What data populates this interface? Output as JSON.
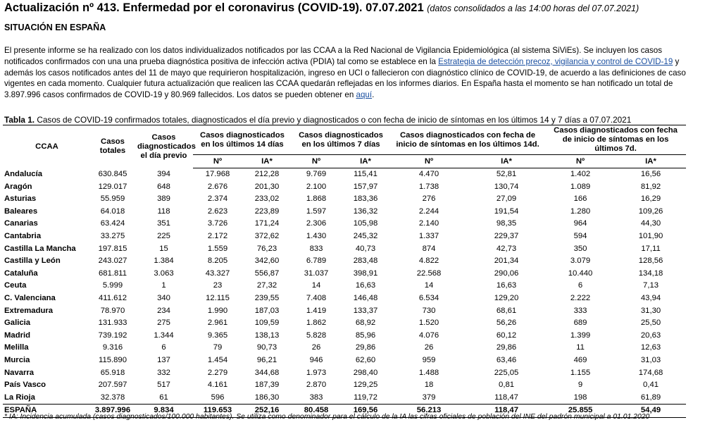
{
  "header": {
    "title": "Actualización nº 413. Enfermedad por el coronavirus (COVID-19). 07.07.2021",
    "subtitle": "(datos consolidados a las 14:00 horas del 07.07.2021)"
  },
  "section_title": "SITUACIÓN EN ESPAÑA",
  "paragraph": {
    "text_1": "El presente informe se ha realizado con los datos individualizados notificados por las CCAA a la Red Nacional de Vigilancia Epidemiológica (al sistema SiViEs). Se incluyen los casos notificados confirmados con una una prueba diagnóstica positiva de infección activa (PDIA) tal como se establece en la ",
    "link_1": "Estrategia de detección precoz, vigilancia y control de COVID-19",
    "text_2": " y además los casos notificados antes del 11 de mayo que requirieron hospitalización, ingreso en UCI o fallecieron con diagnóstico clínico de COVID-19, de acuerdo a las definiciones de caso vigentes en cada momento. Cualquier futura actualización que realicen las CCAA quedarán reflejadas en los informes diarios. En España hasta el momento se han notificado un total de 3.897.996 casos confirmados de COVID-19 y 80.969 fallecidos. Los datos se pueden obtener en ",
    "link_2": "aquí",
    "text_3": "."
  },
  "table": {
    "caption_label": "Tabla 1.",
    "caption": " Casos de COVID-19 confirmados totales, diagnosticados el día previo y diagnosticados o con fecha de inicio de síntomas en los últimos 14 y 7 días a 07.07.2021",
    "columns": [
      "CCAA",
      "Casos totales",
      "Casos diagnosticados el día previo"
    ],
    "groups": [
      "Casos diagnosticados en los últimos 14 días",
      "Casos diagnosticados en los últimos 7 días",
      "Casos diagnosticados con fecha de inicio de síntomas en los últimos 14d.",
      "Casos diagnosticados con fecha de inicio de síntomas en los últimos 7d."
    ],
    "subheaders": [
      "Nº",
      "IA*",
      "Nº",
      "IA*",
      "Nº",
      "IA*",
      "Nº",
      "IA*"
    ],
    "rows": [
      [
        "Andalucía",
        "630.845",
        "394",
        "17.968",
        "212,28",
        "9.769",
        "115,41",
        "4.470",
        "52,81",
        "1.402",
        "16,56"
      ],
      [
        "Aragón",
        "129.017",
        "648",
        "2.676",
        "201,30",
        "2.100",
        "157,97",
        "1.738",
        "130,74",
        "1.089",
        "81,92"
      ],
      [
        "Asturias",
        "55.959",
        "389",
        "2.374",
        "233,02",
        "1.868",
        "183,36",
        "276",
        "27,09",
        "166",
        "16,29"
      ],
      [
        "Baleares",
        "64.018",
        "118",
        "2.623",
        "223,89",
        "1.597",
        "136,32",
        "2.244",
        "191,54",
        "1.280",
        "109,26"
      ],
      [
        "Canarias",
        "63.424",
        "351",
        "3.726",
        "171,24",
        "2.306",
        "105,98",
        "2.140",
        "98,35",
        "964",
        "44,30"
      ],
      [
        "Cantabria",
        "33.275",
        "225",
        "2.172",
        "372,62",
        "1.430",
        "245,32",
        "1.337",
        "229,37",
        "594",
        "101,90"
      ],
      [
        "Castilla La Mancha",
        "197.815",
        "15",
        "1.559",
        "76,23",
        "833",
        "40,73",
        "874",
        "42,73",
        "350",
        "17,11"
      ],
      [
        "Castilla y León",
        "243.027",
        "1.384",
        "8.205",
        "342,60",
        "6.789",
        "283,48",
        "4.822",
        "201,34",
        "3.079",
        "128,56"
      ],
      [
        "Cataluña",
        "681.811",
        "3.063",
        "43.327",
        "556,87",
        "31.037",
        "398,91",
        "22.568",
        "290,06",
        "10.440",
        "134,18"
      ],
      [
        "Ceuta",
        "5.999",
        "1",
        "23",
        "27,32",
        "14",
        "16,63",
        "14",
        "16,63",
        "6",
        "7,13"
      ],
      [
        "C. Valenciana",
        "411.612",
        "340",
        "12.115",
        "239,55",
        "7.408",
        "146,48",
        "6.534",
        "129,20",
        "2.222",
        "43,94"
      ],
      [
        "Extremadura",
        "78.970",
        "234",
        "1.990",
        "187,03",
        "1.419",
        "133,37",
        "730",
        "68,61",
        "333",
        "31,30"
      ],
      [
        "Galicia",
        "131.933",
        "275",
        "2.961",
        "109,59",
        "1.862",
        "68,92",
        "1.520",
        "56,26",
        "689",
        "25,50"
      ],
      [
        "Madrid",
        "739.192",
        "1.344",
        "9.365",
        "138,13",
        "5.828",
        "85,96",
        "4.076",
        "60,12",
        "1.399",
        "20,63"
      ],
      [
        "Melilla",
        "9.316",
        "6",
        "79",
        "90,73",
        "26",
        "29,86",
        "26",
        "29,86",
        "11",
        "12,63"
      ],
      [
        "Murcia",
        "115.890",
        "137",
        "1.454",
        "96,21",
        "946",
        "62,60",
        "959",
        "63,46",
        "469",
        "31,03"
      ],
      [
        "Navarra",
        "65.918",
        "332",
        "2.279",
        "344,68",
        "1.973",
        "298,40",
        "1.488",
        "225,05",
        "1.155",
        "174,68"
      ],
      [
        "País Vasco",
        "207.597",
        "517",
        "4.161",
        "187,39",
        "2.870",
        "129,25",
        "18",
        "0,81",
        "9",
        "0,41"
      ],
      [
        "La Rioja",
        "32.378",
        "61",
        "596",
        "186,30",
        "383",
        "119,72",
        "379",
        "118,47",
        "198",
        "61,89"
      ]
    ],
    "total": [
      "ESPAÑA",
      "3.897.996",
      "9.834",
      "119.653",
      "252,16",
      "80.458",
      "169,56",
      "56.213",
      "118,47",
      "25.855",
      "54,49"
    ]
  },
  "footnote": "* IA: Incidencia acumulada (casos diagnosticados/100.000 habitantes). Se utiliza como denominador para el cálculo de la IA las cifras oficiales de población del INE del padrón municipal a 01.01.2020"
}
